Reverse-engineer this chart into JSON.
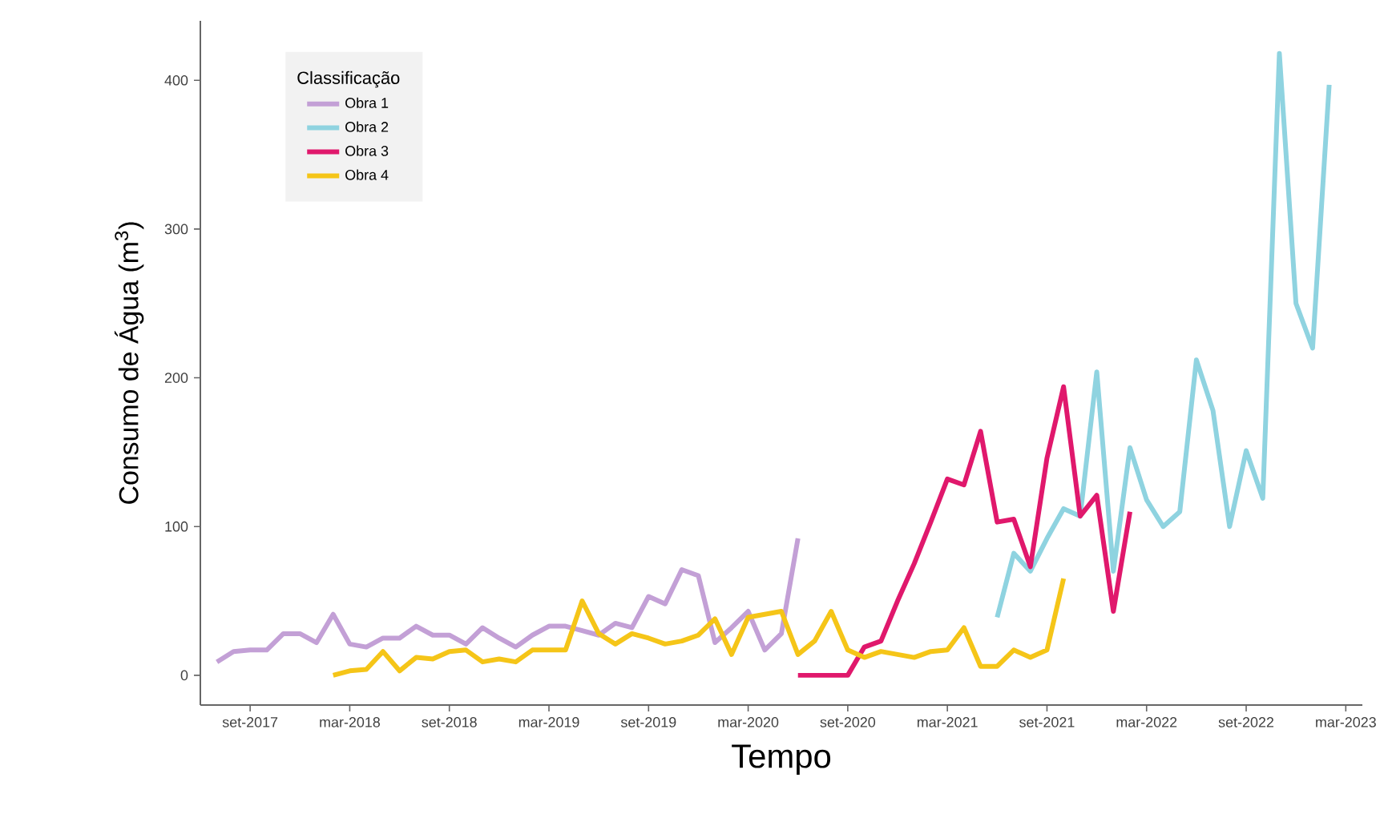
{
  "chart_data": {
    "type": "line",
    "xlabel": "Tempo",
    "ylabel": "Consumo de Água (m$^{3}$)",
    "legend_title": "Classificação",
    "legend": "top left",
    "xlim": [
      "2017-06",
      "2023-04"
    ],
    "ylim": [
      -20,
      440
    ],
    "xticks": [
      {
        "value": "2017-09",
        "label": "set-2017"
      },
      {
        "value": "2018-03",
        "label": "mar-2018"
      },
      {
        "value": "2018-09",
        "label": "set-2018"
      },
      {
        "value": "2019-03",
        "label": "mar-2019"
      },
      {
        "value": "2019-09",
        "label": "set-2019"
      },
      {
        "value": "2020-03",
        "label": "mar-2020"
      },
      {
        "value": "2020-09",
        "label": "set-2020"
      },
      {
        "value": "2021-03",
        "label": "mar-2021"
      },
      {
        "value": "2021-09",
        "label": "set-2021"
      },
      {
        "value": "2022-03",
        "label": "mar-2022"
      },
      {
        "value": "2022-09",
        "label": "set-2022"
      },
      {
        "value": "2023-03",
        "label": "mar-2023"
      }
    ],
    "yticks": [
      0,
      100,
      200,
      300,
      400
    ],
    "series": [
      {
        "name": "Obra 1",
        "color": "#c3a0d6",
        "x": [
          "2017-07",
          "2017-08",
          "2017-09",
          "2017-10",
          "2017-11",
          "2017-12",
          "2018-01",
          "2018-02",
          "2018-03",
          "2018-04",
          "2018-05",
          "2018-06",
          "2018-07",
          "2018-08",
          "2018-09",
          "2018-10",
          "2018-11",
          "2018-12",
          "2019-01",
          "2019-02",
          "2019-03",
          "2019-04",
          "2019-05",
          "2019-06",
          "2019-07",
          "2019-08",
          "2019-09",
          "2019-10",
          "2019-11",
          "2019-12",
          "2020-01",
          "2020-02",
          "2020-03",
          "2020-04",
          "2020-05",
          "2020-06"
        ],
        "values": [
          9,
          16,
          17,
          17,
          28,
          28,
          22,
          41,
          21,
          19,
          25,
          25,
          33,
          27,
          27,
          21,
          32,
          25,
          19,
          27,
          33,
          33,
          30,
          27,
          35,
          32,
          53,
          48,
          71,
          67,
          22,
          32,
          43,
          17,
          28,
          92
        ]
      },
      {
        "name": "Obra 2",
        "color": "#8fd3e0",
        "x": [
          "2021-06",
          "2021-07",
          "2021-08",
          "2021-09",
          "2021-10",
          "2021-11",
          "2021-12",
          "2022-01",
          "2022-02",
          "2022-03",
          "2022-04",
          "2022-05",
          "2022-06",
          "2022-07",
          "2022-08",
          "2022-09",
          "2022-10",
          "2022-11",
          "2022-12",
          "2023-01",
          "2023-02"
        ],
        "values": [
          39,
          82,
          70,
          92,
          112,
          107,
          204,
          70,
          153,
          118,
          100,
          110,
          212,
          178,
          100,
          151,
          119,
          418,
          250,
          220,
          397
        ]
      },
      {
        "name": "Obra 3",
        "color": "#e0186c",
        "x": [
          "2020-06",
          "2020-07",
          "2020-08",
          "2020-09",
          "2020-10",
          "2020-11",
          "2020-12",
          "2021-01",
          "2021-02",
          "2021-03",
          "2021-04",
          "2021-05",
          "2021-06",
          "2021-07",
          "2021-08",
          "2021-09",
          "2021-10",
          "2021-11",
          "2021-12",
          "2022-01",
          "2022-02"
        ],
        "values": [
          0,
          0,
          0,
          0,
          19,
          23,
          50,
          75,
          103,
          132,
          128,
          164,
          103,
          105,
          73,
          146,
          194,
          107,
          121,
          43,
          110
        ]
      },
      {
        "name": "Obra 4",
        "color": "#f5c518",
        "x": [
          "2018-02",
          "2018-03",
          "2018-04",
          "2018-05",
          "2018-06",
          "2018-07",
          "2018-08",
          "2018-09",
          "2018-10",
          "2018-11",
          "2018-12",
          "2019-01",
          "2019-02",
          "2019-03",
          "2019-04",
          "2019-05",
          "2019-06",
          "2019-07",
          "2019-08",
          "2019-09",
          "2019-10",
          "2019-11",
          "2019-12",
          "2020-01",
          "2020-02",
          "2020-03",
          "2020-04",
          "2020-05",
          "2020-06",
          "2020-07",
          "2020-08",
          "2020-09",
          "2020-10",
          "2020-11",
          "2020-12",
          "2021-01",
          "2021-02",
          "2021-03",
          "2021-04",
          "2021-05",
          "2021-06",
          "2021-07",
          "2021-08",
          "2021-09",
          "2021-10"
        ],
        "values": [
          0,
          3,
          4,
          16,
          3,
          12,
          11,
          16,
          17,
          9,
          11,
          9,
          17,
          17,
          17,
          50,
          28,
          21,
          28,
          25,
          21,
          23,
          27,
          38,
          14,
          39,
          41,
          43,
          14,
          23,
          43,
          17,
          12,
          16,
          14,
          12,
          16,
          17,
          32,
          6,
          6,
          17,
          12,
          17,
          65
        ]
      }
    ]
  }
}
